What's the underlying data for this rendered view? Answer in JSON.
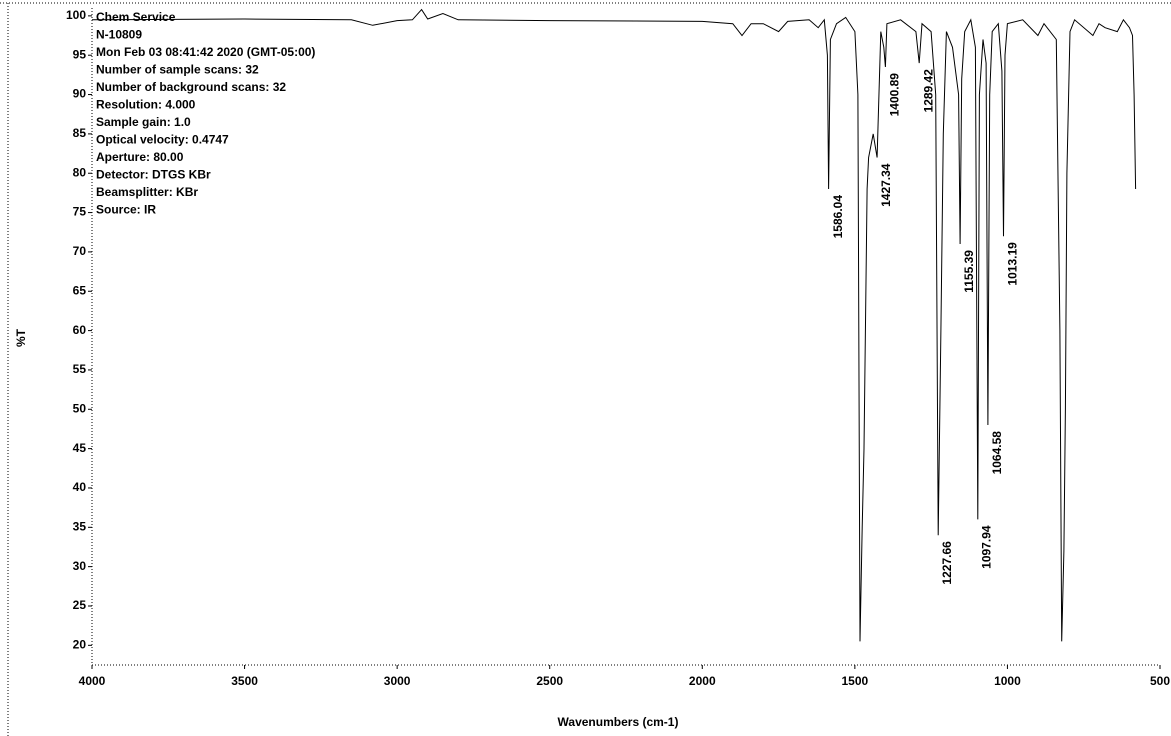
{
  "chart_data": {
    "type": "line",
    "info": [
      "Chem Service",
      "N-10809",
      "Mon Feb 03 08:41:42 2020 (GMT-05:00)",
      "Number of sample scans:  32",
      "Number of background scans:  32",
      "Resolution:  4.000",
      "Sample gain:  1.0",
      "Optical velocity:  0.4747",
      "Aperture:  80.00",
      "Detector:  DTGS KBr",
      "Beamsplitter:  KBr",
      "Source:  IR"
    ],
    "x_label": "Wavenumbers (cm-1)",
    "y_label": "%T",
    "xlim": [
      4000,
      500
    ],
    "ylim": [
      17.5,
      101
    ],
    "xticks": [
      4000,
      3500,
      3000,
      2500,
      2000,
      1500,
      1000,
      500
    ],
    "yticks": [
      20,
      25,
      30,
      35,
      40,
      45,
      50,
      55,
      60,
      65,
      70,
      75,
      80,
      85,
      90,
      95,
      100
    ],
    "series": [
      {
        "name": "%T",
        "color": "#000000",
        "x": [
          4000,
          3500,
          3150,
          3080,
          3000,
          2950,
          2920,
          2900,
          2850,
          2800,
          2500,
          2000,
          1900,
          1870,
          1840,
          1800,
          1750,
          1720,
          1650,
          1620,
          1600,
          1590,
          1586,
          1580,
          1560,
          1530,
          1500,
          1490,
          1483,
          1476,
          1470,
          1460,
          1455,
          1440,
          1427,
          1415,
          1405,
          1400,
          1395,
          1350,
          1300,
          1289,
          1280,
          1250,
          1235,
          1227,
          1218,
          1210,
          1200,
          1180,
          1160,
          1155,
          1150,
          1140,
          1120,
          1105,
          1097,
          1092,
          1080,
          1070,
          1064,
          1058,
          1050,
          1030,
          1018,
          1013,
          1008,
          1000,
          950,
          900,
          880,
          840,
          828,
          822,
          815,
          810,
          805,
          795,
          780,
          720,
          700,
          680,
          640,
          620,
          600,
          590,
          585,
          580
        ],
        "y": [
          99.5,
          99.6,
          99.5,
          98.8,
          99.4,
          99.5,
          100.8,
          99.6,
          100.3,
          99.5,
          99.4,
          99.3,
          99,
          97.5,
          99,
          99,
          98,
          99.3,
          99.5,
          98.5,
          99.5,
          95,
          78,
          97,
          99,
          99.8,
          98,
          90,
          20.5,
          35,
          45,
          78,
          82,
          85,
          82,
          98,
          96,
          93.5,
          99,
          99.5,
          98,
          94,
          99,
          98,
          90,
          34,
          60,
          85,
          98,
          96,
          90,
          71,
          92,
          98,
          99.5,
          96,
          36,
          90,
          97,
          94,
          48,
          90,
          98,
          99,
          93,
          72,
          95,
          99,
          99.5,
          97.5,
          99,
          97,
          60,
          20.5,
          32,
          50,
          80,
          98,
          99.5,
          97.5,
          99,
          98.5,
          98,
          99.5,
          98.5,
          97.5,
          90,
          78
        ]
      }
    ],
    "peaks": [
      1586.04,
      1427.34,
      1400.89,
      1289.42,
      1227.66,
      1155.39,
      1097.94,
      1064.58,
      1013.19
    ]
  }
}
